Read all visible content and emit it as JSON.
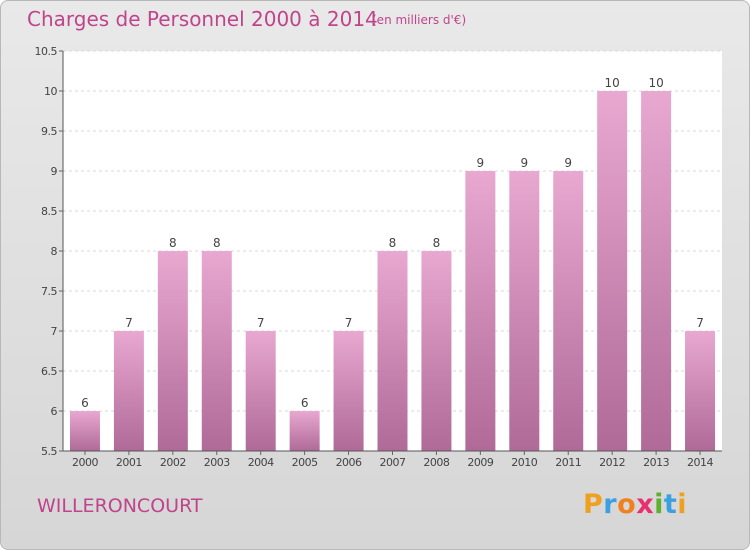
{
  "header": {
    "title": "Charges de Personnel 2000 à 2014",
    "subtitle": "(en milliers d'€)"
  },
  "footer": {
    "commune": "WILLERONCOURT",
    "logo_letters": [
      "P",
      "r",
      "o",
      "x",
      "i",
      "t",
      "i"
    ]
  },
  "colors": {
    "title": "#c0448c",
    "bar_top": "#e8a8d0",
    "bar_bottom": "#b06a98",
    "logo": [
      "#f0a020",
      "#3aa0e0",
      "#f08020",
      "#e83070",
      "#60b030",
      "#3aa0e0",
      "#f0a020"
    ]
  },
  "chart_data": {
    "type": "bar",
    "categories": [
      "2000",
      "2001",
      "2002",
      "2003",
      "2004",
      "2005",
      "2006",
      "2007",
      "2008",
      "2009",
      "2010",
      "2011",
      "2012",
      "2013",
      "2014"
    ],
    "values": [
      6,
      7,
      8,
      8,
      7,
      6,
      7,
      8,
      8,
      9,
      9,
      9,
      10,
      10,
      7
    ],
    "data_labels": [
      "6",
      "7",
      "8",
      "8",
      "7",
      "6",
      "7",
      "8",
      "8",
      "9",
      "9",
      "9",
      "10",
      "10",
      "7"
    ],
    "yticks": [
      "5.5",
      "6",
      "6.5",
      "7",
      "7.5",
      "8",
      "8.5",
      "9",
      "9.5",
      "10",
      "10.5"
    ],
    "ylim": [
      5.5,
      10.5
    ],
    "grid": true
  }
}
